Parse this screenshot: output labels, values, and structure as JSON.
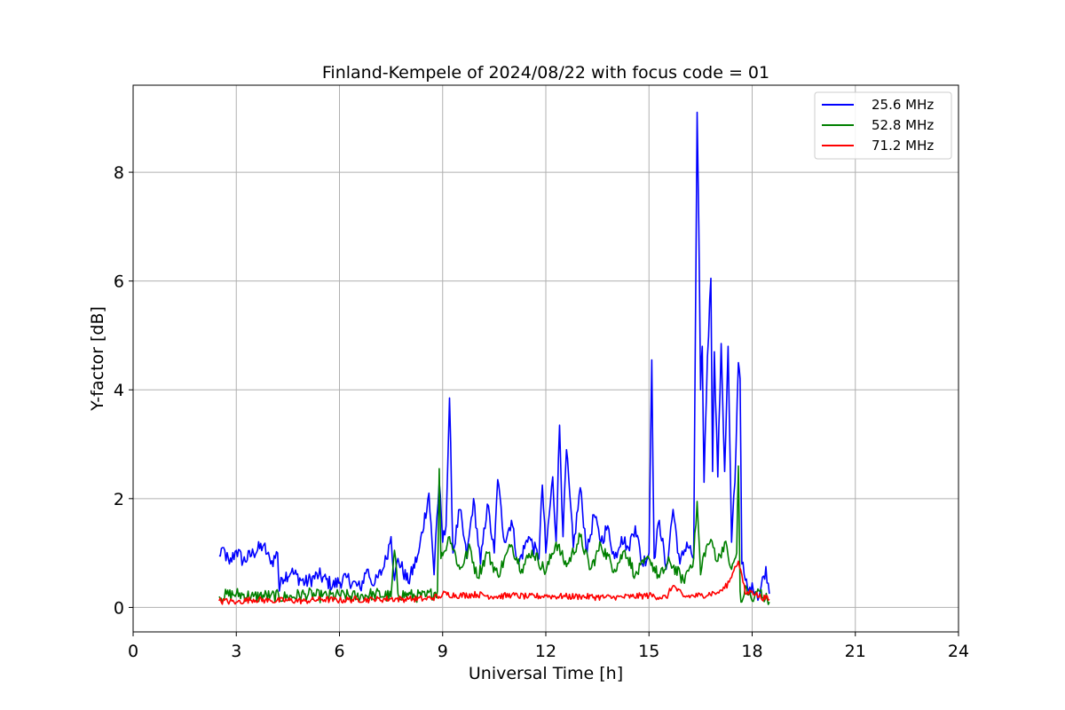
{
  "chart_data": {
    "type": "line",
    "title": "Finland-Kempele of 2024/08/22 with focus code = 01",
    "xlabel": "Universal Time [h]",
    "ylabel": "Y-factor [dB]",
    "xlim": [
      0,
      24
    ],
    "ylim": [
      -0.45,
      9.6
    ],
    "xticks": [
      0,
      3,
      6,
      9,
      12,
      15,
      18,
      21,
      24
    ],
    "yticks": [
      0,
      2,
      4,
      6,
      8
    ],
    "xtick_labels": [
      "0",
      "3",
      "6",
      "9",
      "12",
      "15",
      "18",
      "21",
      "24"
    ],
    "ytick_labels": [
      "0",
      "2",
      "4",
      "6",
      "8"
    ],
    "grid": true,
    "legend_position": "top-right",
    "series": [
      {
        "name": "25.6 MHz",
        "color": "#0000ff",
        "x": [
          2.5,
          2.6,
          2.8,
          3.0,
          3.2,
          3.5,
          3.8,
          4.0,
          4.2,
          4.25,
          4.3,
          4.6,
          5.0,
          5.4,
          5.8,
          6.2,
          6.6,
          6.8,
          7.0,
          7.3,
          7.5,
          7.6,
          7.7,
          8.0,
          8.3,
          8.6,
          8.75,
          8.8,
          8.9,
          9.0,
          9.1,
          9.2,
          9.3,
          9.5,
          9.7,
          9.9,
          10.1,
          10.3,
          10.5,
          10.6,
          10.8,
          11.0,
          11.2,
          11.5,
          11.8,
          11.9,
          12.0,
          12.2,
          12.3,
          12.4,
          12.5,
          12.6,
          12.8,
          13.0,
          13.2,
          13.4,
          13.6,
          13.8,
          14.0,
          14.2,
          14.4,
          14.6,
          14.8,
          15.0,
          15.08,
          15.15,
          15.3,
          15.5,
          15.7,
          15.9,
          16.1,
          16.3,
          16.4,
          16.45,
          16.5,
          16.55,
          16.6,
          16.7,
          16.8,
          16.85,
          16.9,
          17.0,
          17.1,
          17.2,
          17.3,
          17.4,
          17.5,
          17.6,
          17.65,
          17.7,
          17.8,
          17.9,
          18.0,
          18.2,
          18.4,
          18.5
        ],
        "y": [
          0.95,
          1.1,
          0.8,
          1.05,
          0.85,
          1.0,
          1.15,
          0.8,
          1.0,
          0.3,
          0.55,
          0.65,
          0.45,
          0.6,
          0.4,
          0.55,
          0.35,
          0.7,
          0.4,
          0.75,
          1.3,
          0.5,
          0.9,
          0.45,
          1.0,
          2.1,
          0.6,
          1.3,
          2.3,
          1.2,
          1.5,
          3.85,
          1.0,
          1.8,
          0.9,
          2.0,
          0.8,
          1.9,
          1.0,
          2.35,
          1.2,
          1.6,
          0.8,
          1.3,
          0.9,
          2.25,
          1.0,
          2.4,
          1.2,
          3.35,
          1.3,
          2.9,
          1.1,
          2.2,
          1.0,
          1.7,
          1.2,
          1.5,
          0.9,
          1.3,
          1.1,
          1.5,
          0.8,
          1.0,
          4.55,
          0.9,
          1.6,
          0.7,
          1.8,
          0.8,
          1.2,
          0.9,
          9.1,
          7.0,
          4.0,
          4.8,
          2.3,
          4.6,
          6.05,
          2.5,
          4.7,
          2.4,
          4.85,
          2.5,
          4.8,
          1.2,
          2.3,
          4.5,
          4.2,
          0.8,
          0.5,
          0.3,
          0.45,
          0.2,
          0.75,
          0.25
        ]
      },
      {
        "name": "52.8 MHz",
        "color": "#008000",
        "x": [
          2.5,
          3.0,
          3.5,
          4.0,
          4.5,
          5.0,
          5.5,
          6.0,
          6.5,
          7.0,
          7.5,
          7.6,
          7.7,
          8.0,
          8.5,
          8.85,
          8.9,
          8.95,
          9.0,
          9.2,
          9.5,
          9.8,
          10.0,
          10.3,
          10.6,
          11.0,
          11.3,
          11.6,
          12.0,
          12.3,
          12.6,
          13.0,
          13.3,
          13.6,
          14.0,
          14.3,
          14.6,
          15.0,
          15.3,
          15.6,
          16.0,
          16.3,
          16.4,
          16.5,
          16.6,
          16.8,
          17.0,
          17.2,
          17.4,
          17.55,
          17.6,
          17.65,
          17.7,
          17.8,
          18.0,
          18.2,
          18.5
        ],
        "y": [
          0.2,
          0.25,
          0.2,
          0.22,
          0.18,
          0.25,
          0.2,
          0.22,
          0.2,
          0.25,
          0.2,
          1.05,
          0.25,
          0.22,
          0.2,
          0.3,
          2.55,
          0.9,
          0.95,
          1.3,
          0.7,
          1.1,
          0.55,
          1.0,
          0.6,
          1.15,
          0.7,
          1.05,
          0.65,
          1.2,
          0.75,
          1.3,
          0.7,
          1.15,
          0.7,
          1.05,
          0.6,
          0.9,
          0.55,
          0.85,
          0.5,
          0.9,
          1.95,
          0.6,
          1.0,
          1.25,
          0.85,
          1.2,
          0.7,
          1.0,
          2.6,
          0.3,
          0.1,
          0.4,
          0.12,
          0.3,
          0.1
        ]
      },
      {
        "name": "71.2 MHz",
        "color": "#ff0000",
        "x": [
          2.5,
          3.0,
          3.5,
          4.0,
          4.5,
          5.0,
          5.5,
          6.0,
          6.5,
          7.0,
          7.5,
          8.0,
          8.5,
          8.9,
          9.0,
          9.5,
          10.0,
          10.5,
          11.0,
          11.5,
          12.0,
          12.5,
          13.0,
          13.5,
          14.0,
          14.5,
          15.0,
          15.5,
          15.7,
          16.0,
          16.5,
          17.0,
          17.2,
          17.4,
          17.5,
          17.6,
          17.7,
          17.8,
          18.0,
          18.2,
          18.5
        ],
        "y": [
          0.12,
          0.1,
          0.15,
          0.12,
          0.13,
          0.12,
          0.15,
          0.13,
          0.15,
          0.14,
          0.16,
          0.15,
          0.16,
          0.2,
          0.25,
          0.22,
          0.24,
          0.2,
          0.22,
          0.2,
          0.21,
          0.2,
          0.2,
          0.19,
          0.18,
          0.2,
          0.22,
          0.18,
          0.4,
          0.2,
          0.22,
          0.28,
          0.35,
          0.55,
          0.75,
          0.85,
          0.6,
          0.25,
          0.3,
          0.2,
          0.15
        ]
      }
    ]
  }
}
